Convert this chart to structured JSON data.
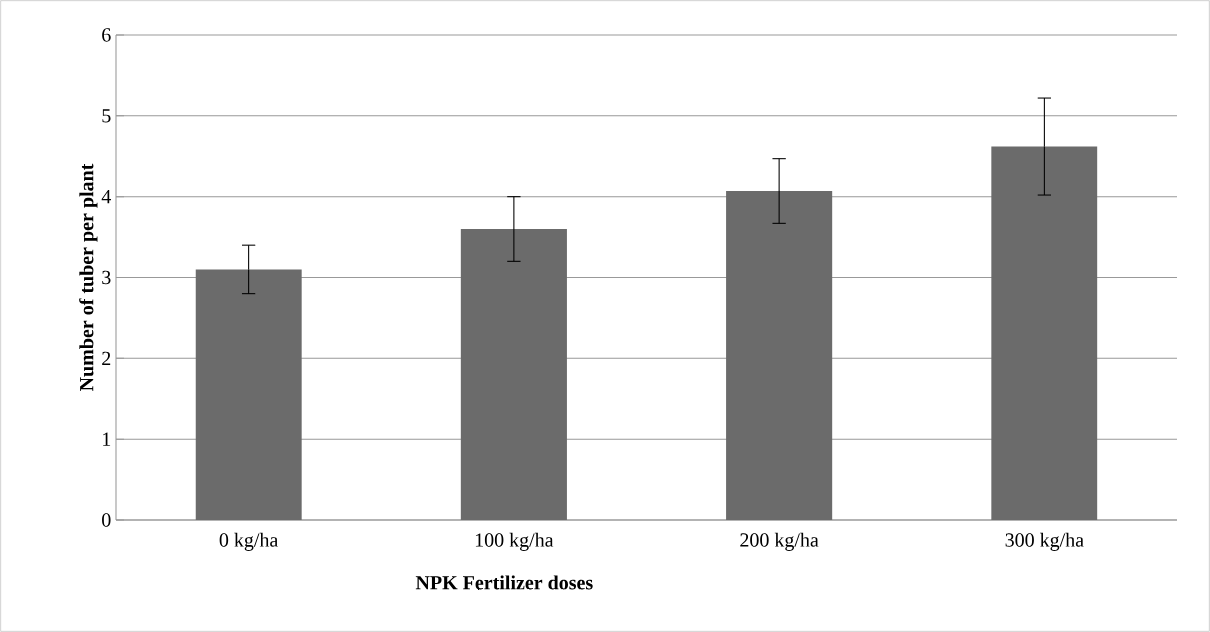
{
  "chart_data": {
    "type": "bar",
    "xlabel": "NPK Fertilizer doses",
    "ylabel": "Number of tuber per plant",
    "categories": [
      "0 kg/ha",
      "100 kg/ha",
      "200 kg/ha",
      "300 kg/ha"
    ],
    "values": [
      3.1,
      3.6,
      4.07,
      4.62
    ],
    "errors": [
      0.3,
      0.4,
      0.4,
      0.6
    ],
    "color": "#6b6b6b",
    "ylim": [
      0,
      6
    ],
    "yticks": [
      0,
      1,
      2,
      3,
      4,
      5,
      6
    ],
    "grid": "y"
  }
}
